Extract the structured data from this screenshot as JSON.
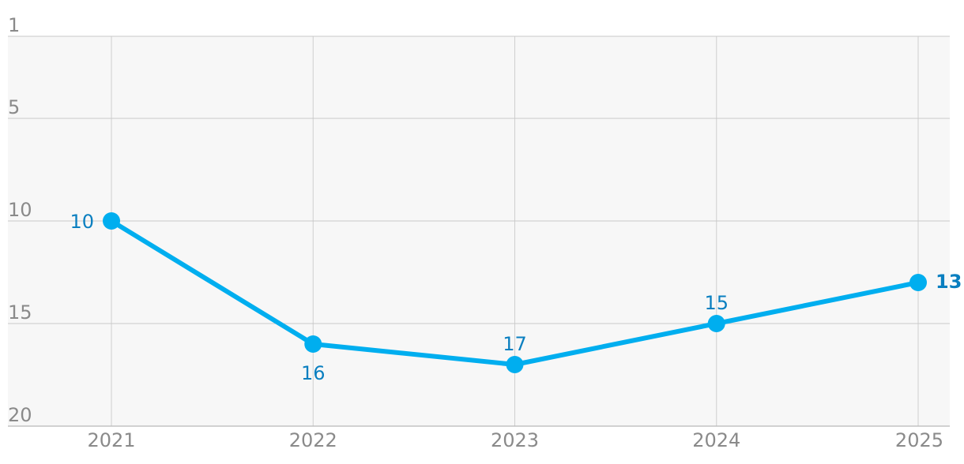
{
  "chart_data": {
    "type": "line",
    "title": "",
    "xlabel": "",
    "ylabel": "",
    "y_inverted": true,
    "ylim": [
      1,
      20
    ],
    "y_ticks": [
      1,
      5,
      10,
      15,
      20
    ],
    "grid": true,
    "legend": "none",
    "categories": [
      "2021",
      "2022",
      "2023",
      "2024",
      "2025"
    ],
    "series": [
      {
        "values": [
          10,
          16,
          17,
          15,
          13
        ],
        "color": "#00aeef",
        "label_color": "#0a7fc0"
      }
    ]
  }
}
